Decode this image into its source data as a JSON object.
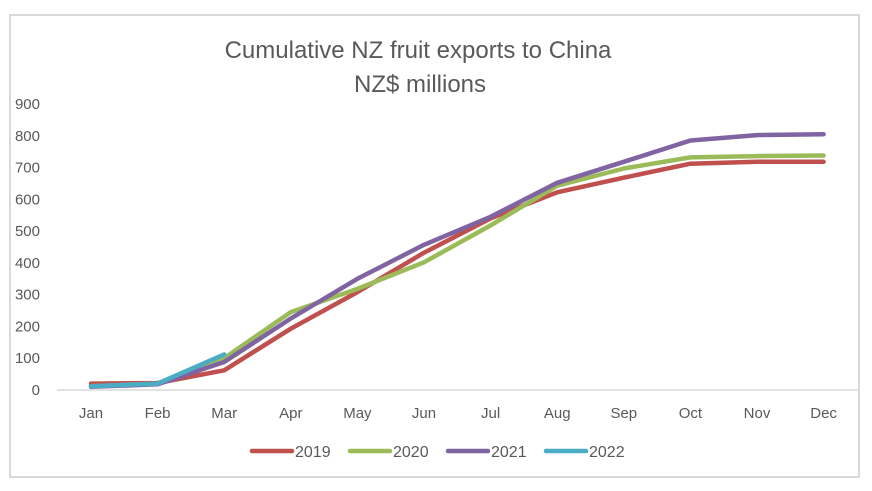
{
  "chart_data": {
    "type": "line",
    "title": "Cumulative NZ fruit exports to China",
    "subtitle": "NZ$ millions",
    "xlabel": "",
    "ylabel": "",
    "categories": [
      "Jan",
      "Feb",
      "Mar",
      "Apr",
      "May",
      "Jun",
      "Jul",
      "Aug",
      "Sep",
      "Oct",
      "Nov",
      "Dec"
    ],
    "yticks": [
      0,
      100,
      200,
      300,
      400,
      500,
      600,
      700,
      800,
      900
    ],
    "ylim": [
      0,
      900
    ],
    "grid": false,
    "legend_position": "bottom",
    "series": [
      {
        "name": "2019",
        "color": "#c0504d",
        "values": [
          20,
          22,
          62,
          193,
          308,
          432,
          540,
          622,
          668,
          712,
          718,
          718
        ]
      },
      {
        "name": "2020",
        "color": "#9bbb59",
        "values": [
          12,
          20,
          100,
          245,
          318,
          402,
          518,
          643,
          697,
          732,
          736,
          738
        ]
      },
      {
        "name": "2021",
        "color": "#8064a2",
        "values": [
          10,
          18,
          88,
          225,
          350,
          457,
          545,
          652,
          718,
          785,
          802,
          805
        ]
      },
      {
        "name": "2022",
        "color": "#4bacc6",
        "values": [
          12,
          20,
          112
        ]
      }
    ]
  }
}
